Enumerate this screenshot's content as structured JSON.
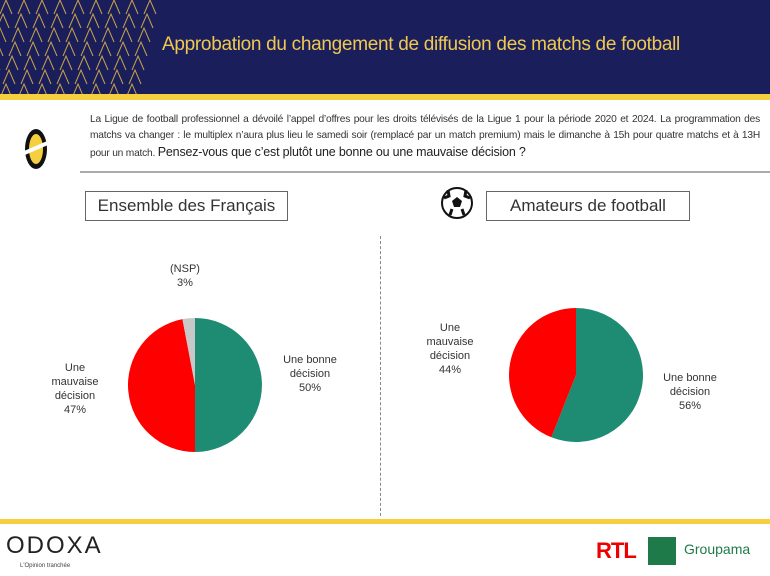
{
  "header": {
    "title": "Approbation du changement de diffusion des matchs de football"
  },
  "intro": {
    "text": "La Ligue de football professionnel a dévoilé l’appel d’offres pour les droits télévisés de la Ligue 1 pour la période 2020 et 2024. La programmation des matchs va changer : le multiplex n’aura plus lieu le samedi soir (remplacé par un match premium) mais le dimanche à 15h pour quatre matchs  et à 13H pour un match.",
    "question": "Pensez-vous que c’est plutôt une bonne ou une mauvaise décision ?"
  },
  "colors": {
    "good": "#1e8c72",
    "bad": "#ff0000",
    "nsp": "#c8c8c8",
    "navy": "#1a1f5c",
    "yellow": "#f5cf3d"
  },
  "chart_data": [
    {
      "type": "pie",
      "title": "Ensemble des Français",
      "slices": [
        {
          "label": "Une bonne décision",
          "value": 50,
          "text": "50%"
        },
        {
          "label": "Une mauvaise décision",
          "value": 47,
          "text": "47%"
        },
        {
          "label": "(NSP)",
          "value": 3,
          "text": "3%"
        }
      ]
    },
    {
      "type": "pie",
      "title": "Amateurs de football",
      "slices": [
        {
          "label": "Une bonne décision",
          "value": 56,
          "text": "56%"
        },
        {
          "label": "Une mauvaise décision",
          "value": 44,
          "text": "44%"
        }
      ]
    }
  ],
  "footer": {
    "brand": "ODOXA",
    "tagline": "L'Opinion tranchée",
    "partner1": "RTL",
    "partner2": "Groupama"
  }
}
